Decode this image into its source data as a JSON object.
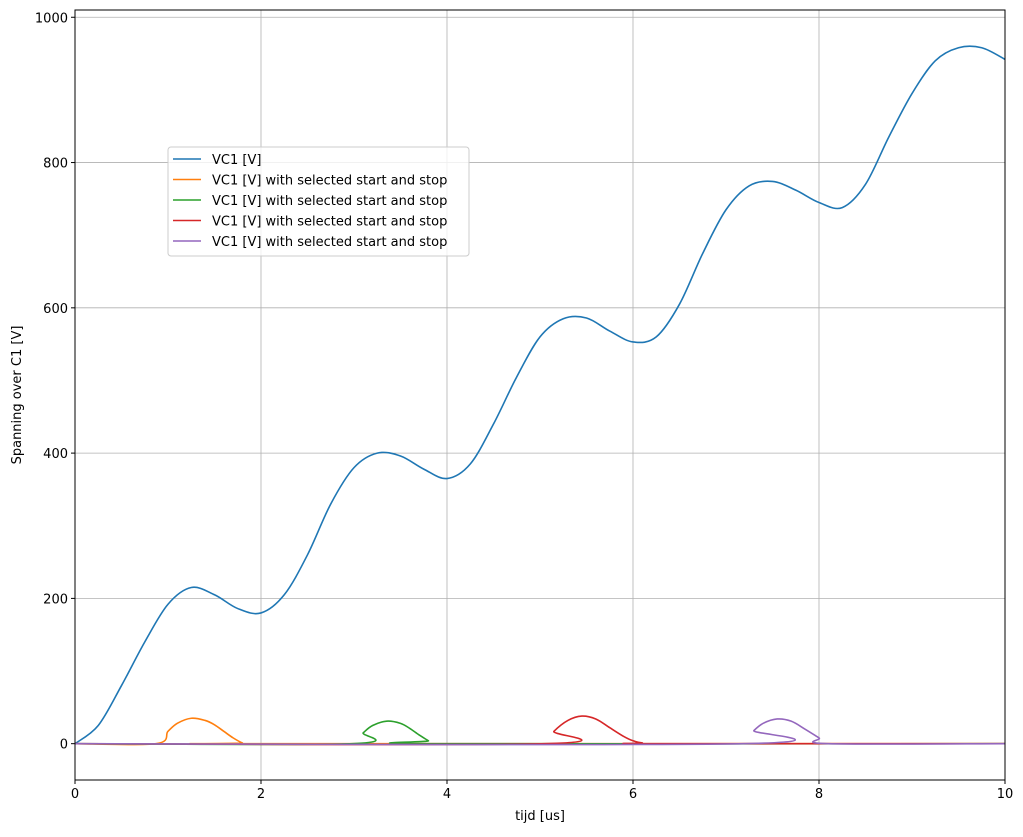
{
  "chart_data": {
    "type": "line",
    "xlabel": "tijd [us]",
    "ylabel": "Spanning over C1 [V]",
    "xlim": [
      0,
      10
    ],
    "ylim": [
      -50,
      1010
    ],
    "xticks": [
      0,
      2,
      4,
      6,
      8,
      10
    ],
    "yticks": [
      0,
      200,
      400,
      600,
      800,
      1000
    ],
    "grid": true,
    "legend_placement": "upper-left",
    "series": [
      {
        "name": "VC1 [V]",
        "color": "#1f77b4",
        "points": [
          [
            0,
            0
          ],
          [
            0.25,
            25
          ],
          [
            0.5,
            80
          ],
          [
            0.75,
            140
          ],
          [
            1.0,
            192
          ],
          [
            1.25,
            215
          ],
          [
            1.5,
            205
          ],
          [
            1.75,
            186
          ],
          [
            2.0,
            180
          ],
          [
            2.25,
            205
          ],
          [
            2.5,
            260
          ],
          [
            2.75,
            330
          ],
          [
            3.0,
            380
          ],
          [
            3.25,
            400
          ],
          [
            3.5,
            396
          ],
          [
            3.75,
            378
          ],
          [
            4.0,
            365
          ],
          [
            4.25,
            385
          ],
          [
            4.5,
            440
          ],
          [
            4.75,
            505
          ],
          [
            5.0,
            560
          ],
          [
            5.25,
            585
          ],
          [
            5.5,
            586
          ],
          [
            5.75,
            568
          ],
          [
            6.0,
            553
          ],
          [
            6.25,
            560
          ],
          [
            6.5,
            605
          ],
          [
            6.75,
            675
          ],
          [
            7.0,
            735
          ],
          [
            7.25,
            768
          ],
          [
            7.5,
            774
          ],
          [
            7.75,
            762
          ],
          [
            8.0,
            745
          ],
          [
            8.25,
            738
          ],
          [
            8.5,
            770
          ],
          [
            8.75,
            835
          ],
          [
            9.0,
            895
          ],
          [
            9.25,
            940
          ],
          [
            9.5,
            958
          ],
          [
            9.75,
            958
          ],
          [
            10.0,
            942
          ]
        ]
      },
      {
        "name": "VC1 [V] with selected start and stop",
        "color": "#ff7f0e",
        "points": [
          [
            0,
            0
          ],
          [
            0.87,
            0
          ],
          [
            1.0,
            17
          ],
          [
            1.1,
            28
          ],
          [
            1.25,
            35
          ],
          [
            1.4,
            32
          ],
          [
            1.5,
            26
          ],
          [
            1.6,
            17
          ],
          [
            1.7,
            8
          ],
          [
            1.8,
            1
          ],
          [
            1.85,
            0
          ],
          [
            10,
            0
          ]
        ]
      },
      {
        "name": "VC1 [V] with selected start and stop",
        "color": "#2ca02c",
        "points": [
          [
            0,
            0
          ],
          [
            2.98,
            0
          ],
          [
            3.1,
            15
          ],
          [
            3.2,
            25
          ],
          [
            3.35,
            31
          ],
          [
            3.5,
            28
          ],
          [
            3.6,
            21
          ],
          [
            3.7,
            12
          ],
          [
            3.8,
            4
          ],
          [
            3.85,
            0
          ],
          [
            10,
            0
          ]
        ]
      },
      {
        "name": "VC1 [V] with selected start and stop",
        "color": "#d62728",
        "points": [
          [
            0,
            0
          ],
          [
            5.05,
            0
          ],
          [
            5.15,
            17
          ],
          [
            5.3,
            32
          ],
          [
            5.45,
            38
          ],
          [
            5.6,
            34
          ],
          [
            5.75,
            22
          ],
          [
            5.9,
            10
          ],
          [
            6.0,
            4
          ],
          [
            6.1,
            1
          ],
          [
            6.2,
            0
          ],
          [
            10,
            0
          ]
        ]
      },
      {
        "name": "VC1 [V] with selected start and stop",
        "color": "#9467bd",
        "points": [
          [
            0,
            0
          ],
          [
            7.18,
            0
          ],
          [
            7.3,
            18
          ],
          [
            7.4,
            28
          ],
          [
            7.55,
            34
          ],
          [
            7.7,
            31
          ],
          [
            7.85,
            20
          ],
          [
            8.0,
            8
          ],
          [
            8.1,
            0
          ],
          [
            10,
            0
          ]
        ]
      }
    ]
  }
}
